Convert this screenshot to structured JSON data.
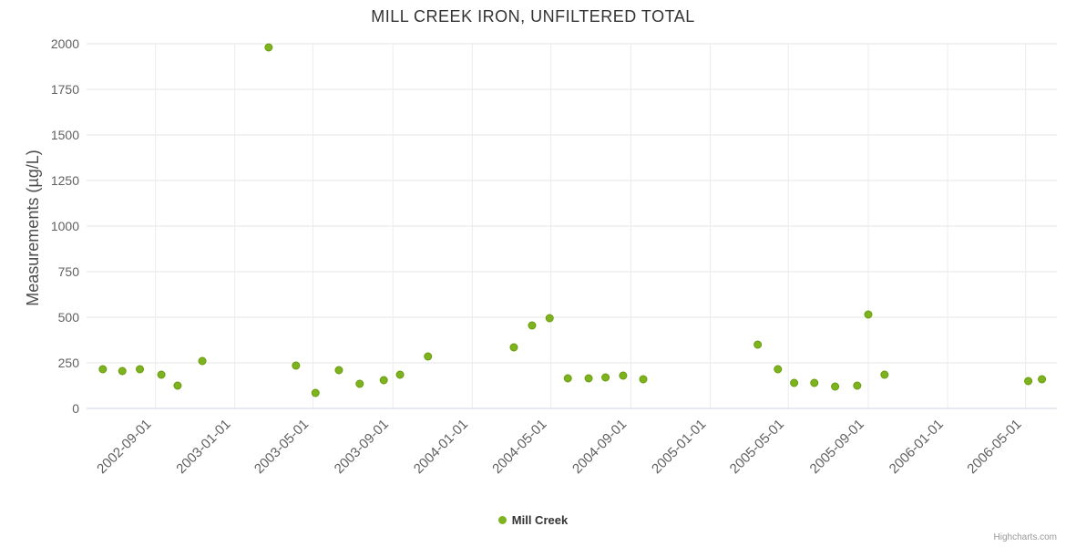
{
  "title": "MILL CREEK IRON, UNFILTERED TOTAL",
  "credits": "Highcharts.com",
  "legend": {
    "items": [
      {
        "label": "Mill Creek",
        "color": "#7db41e"
      }
    ]
  },
  "colors": {
    "marker_fill": "#7db41e",
    "marker_stroke": "#6a9a10",
    "grid_horizontal": "#e6e6e6",
    "grid_vertical": "#ececec",
    "axis_line": "#ccd6eb",
    "tick_text": "#606060",
    "title_text": "#333333"
  },
  "chart_data": {
    "type": "scatter",
    "title": "MILL CREEK IRON, UNFILTERED TOTAL",
    "xlabel": "",
    "ylabel": "Measurements (µg/L)",
    "ylim": [
      0,
      2000
    ],
    "yticks": [
      0,
      250,
      500,
      750,
      1000,
      1250,
      1500,
      1750,
      2000
    ],
    "xticks": [
      "2002-09-01",
      "2003-01-01",
      "2003-05-01",
      "2003-09-01",
      "2004-01-01",
      "2004-05-01",
      "2004-09-01",
      "2005-01-01",
      "2005-05-01",
      "2005-09-01",
      "2006-01-01",
      "2006-05-01"
    ],
    "x_range": [
      "2002-05-18",
      "2006-06-18"
    ],
    "grid": true,
    "legend_position": "bottom",
    "series": [
      {
        "name": "Mill Creek",
        "color": "#7db41e",
        "points": [
          [
            "2002-06-12",
            215
          ],
          [
            "2002-07-12",
            205
          ],
          [
            "2002-08-08",
            215
          ],
          [
            "2002-09-10",
            185
          ],
          [
            "2002-10-05",
            125
          ],
          [
            "2002-11-12",
            260
          ],
          [
            "2003-02-22",
            1980
          ],
          [
            "2003-04-05",
            235
          ],
          [
            "2003-05-05",
            85
          ],
          [
            "2003-06-10",
            210
          ],
          [
            "2003-07-12",
            135
          ],
          [
            "2003-08-18",
            155
          ],
          [
            "2003-09-12",
            185
          ],
          [
            "2003-10-25",
            285
          ],
          [
            "2004-03-05",
            335
          ],
          [
            "2004-04-02",
            455
          ],
          [
            "2004-04-29",
            495
          ],
          [
            "2004-05-27",
            165
          ],
          [
            "2004-06-28",
            165
          ],
          [
            "2004-07-24",
            170
          ],
          [
            "2004-08-20",
            180
          ],
          [
            "2004-09-20",
            160
          ],
          [
            "2005-03-15",
            350
          ],
          [
            "2005-04-15",
            215
          ],
          [
            "2005-05-10",
            140
          ],
          [
            "2005-06-10",
            140
          ],
          [
            "2005-07-12",
            120
          ],
          [
            "2005-08-15",
            125
          ],
          [
            "2005-09-01",
            515
          ],
          [
            "2005-09-26",
            185
          ],
          [
            "2006-05-05",
            150
          ],
          [
            "2006-05-26",
            160
          ]
        ]
      }
    ]
  }
}
